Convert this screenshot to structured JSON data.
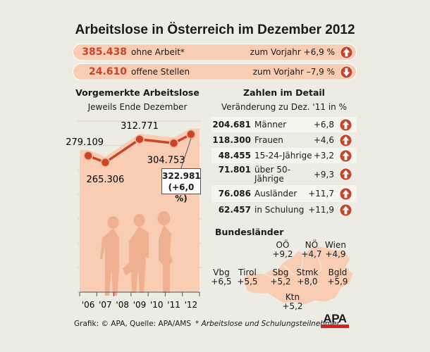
{
  "title": "Arbeitslose in Österreich im Dezember 2012",
  "summary": [
    {
      "number": "385.438",
      "label": "ohne Arbeit*",
      "change": "zum Vorjahr +6,9 %",
      "direction": "up"
    },
    {
      "number": "24.610",
      "label": "offene Stellen",
      "change": "zum Vorjahr –7,9 %",
      "direction": "down"
    }
  ],
  "left": {
    "title": "Vorgemerkte Arbeitslose",
    "subtitle": "Jeweils Ende Dezember"
  },
  "chart_data": {
    "type": "line",
    "title": "Vorgemerkte Arbeitslose",
    "subtitle": "Jeweils Ende Dezember",
    "categories": [
      "'06",
      "'07",
      "'08",
      "'09",
      "'10",
      "'11",
      "'12"
    ],
    "x": [
      "'06",
      "'07",
      "'09",
      "'11",
      "'12"
    ],
    "values": [
      279109,
      265306,
      312771,
      304753,
      322981
    ],
    "labels": [
      "279.109",
      "265.306",
      "312.771",
      "304.753",
      "322.981"
    ],
    "highlight": {
      "value": "322.981",
      "change": "(+6,0 %)"
    },
    "ylim": [
      0,
      350000
    ],
    "grid": true,
    "colors": {
      "line": "#c8452a",
      "fill": "#f8cdb3"
    }
  },
  "detail": {
    "title": "Zahlen im Detail",
    "subtitle": "Veränderung zu Dez. '11 in %",
    "rows": [
      {
        "number": "204.681",
        "label": "Männer",
        "change": "+6,8"
      },
      {
        "number": "118.300",
        "label": "Frauen",
        "change": "+4,6"
      },
      {
        "number": "48.455",
        "label": "15-24-Jährige",
        "change": "+3,2"
      },
      {
        "number": "71.801",
        "label": "über 50-",
        "label2": "Jährige",
        "change": "+9,3"
      },
      {
        "number": "76.086",
        "label": "Ausländer",
        "change": "+11,7"
      },
      {
        "number": "62.457",
        "label": "in Schulung",
        "change": "+11,9"
      }
    ]
  },
  "states": {
    "title": "Bundesländer",
    "items": [
      {
        "name": "OÖ",
        "change": "+9,2"
      },
      {
        "name": "NÖ",
        "change": "+4,7"
      },
      {
        "name": "Wien",
        "change": "+4,9"
      },
      {
        "name": "Vbg",
        "change": "+6,5"
      },
      {
        "name": "Tirol",
        "change": "+5,5"
      },
      {
        "name": "Sbg",
        "change": "+5,2"
      },
      {
        "name": "Stmk",
        "change": "+8,0"
      },
      {
        "name": "Bgld",
        "change": "+5,9"
      },
      {
        "name": "Ktn",
        "change": "+5,2"
      }
    ]
  },
  "footer": {
    "source": "Grafik: © APA, Quelle: APA/AMS",
    "footnote": "* Arbeitslose und Schulungsteilnehmer",
    "logo": "APA"
  },
  "colors": {
    "accent": "#c8452a",
    "pill": "#f8cdb3",
    "background": "#ecebe4"
  }
}
